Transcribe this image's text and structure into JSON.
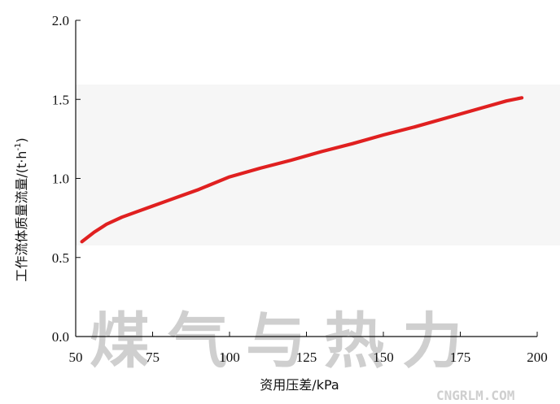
{
  "chart_data": {
    "type": "line",
    "xlabel": "资用压差/kPa",
    "ylabel_main": "工作流体质量流量/(t·h",
    "ylabel_sup": "-1",
    "ylabel_close": ")",
    "xlim": [
      50,
      200
    ],
    "ylim": [
      0.0,
      2.0
    ],
    "x_ticks": [
      "50",
      "75",
      "100",
      "125",
      "150",
      "175",
      "200"
    ],
    "y_ticks": [
      "0.0",
      "0.5",
      "1.0",
      "1.5",
      "2.0"
    ],
    "grid": false,
    "line_color": "#e02020",
    "series": [
      {
        "x": [
          52,
          56,
          60,
          65,
          70,
          75,
          80,
          85,
          90,
          95,
          100,
          110,
          120,
          130,
          140,
          150,
          160,
          170,
          180,
          190,
          195
        ],
        "y": [
          0.6,
          0.66,
          0.71,
          0.755,
          0.79,
          0.825,
          0.86,
          0.895,
          0.93,
          0.97,
          1.01,
          1.065,
          1.115,
          1.17,
          1.22,
          1.275,
          1.325,
          1.38,
          1.435,
          1.49,
          1.51
        ]
      }
    ]
  },
  "watermark": {
    "text": "煤气与热力",
    "site": "CNGRLM.COM",
    "color": "#cfcfcf"
  }
}
